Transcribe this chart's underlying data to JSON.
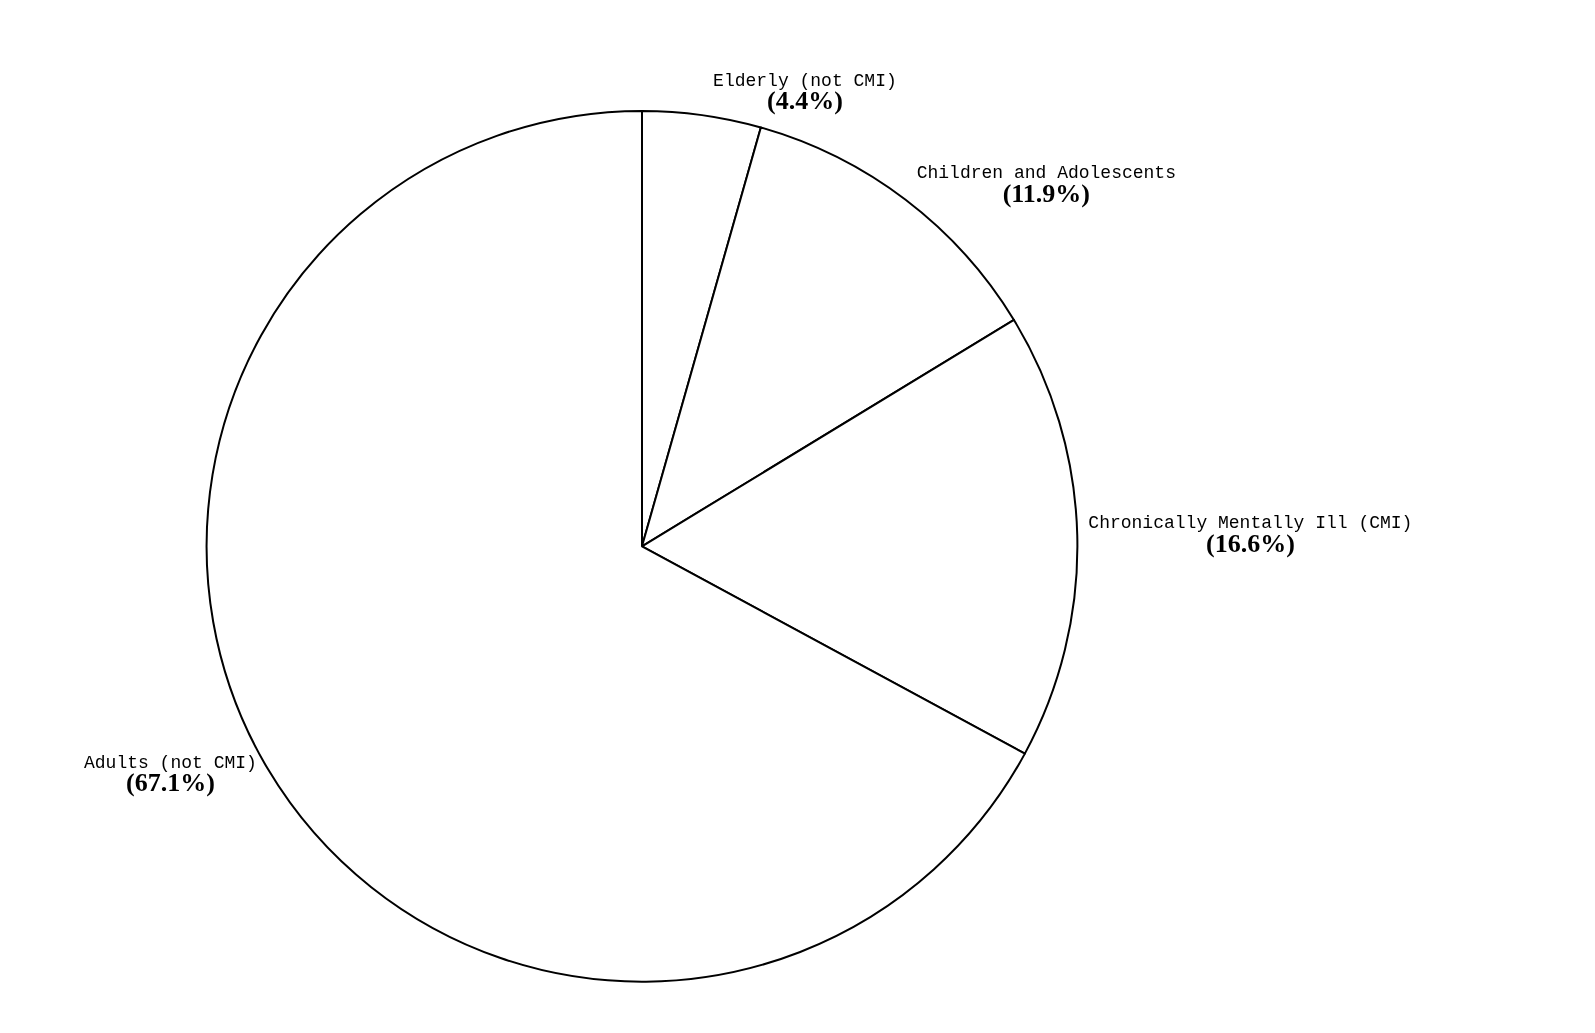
{
  "chart_data": {
    "type": "pie",
    "categories": [
      "Elderly (not CMI)",
      "Children and Adolescents",
      "Chronically Mentally Ill (CMI)",
      "Adults (not CMI)"
    ],
    "values": [
      4.4,
      11.9,
      16.6,
      67.1
    ],
    "value_labels": [
      "(4.4%)",
      "(11.9%)",
      "(16.6%)",
      "(67.1%)"
    ],
    "colors": [
      "#ffffff",
      "#ffffff",
      "#ffffff",
      "#ffffff"
    ],
    "legend": false
  }
}
